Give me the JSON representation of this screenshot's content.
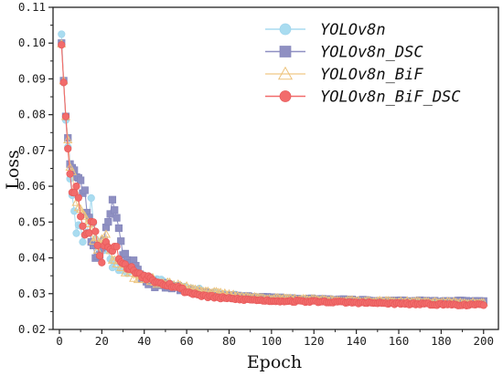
{
  "chart_data": {
    "type": "line",
    "xlabel": "Epoch",
    "ylabel": "Loss",
    "xlim": [
      -3,
      207
    ],
    "ylim": [
      0.02,
      0.11
    ],
    "xticks": [
      0,
      20,
      40,
      60,
      80,
      100,
      120,
      140,
      160,
      180,
      200
    ],
    "yticks": [
      0.02,
      0.03,
      0.04,
      0.05,
      0.06,
      0.07,
      0.08,
      0.09,
      0.1,
      0.11
    ],
    "ytick_labels": [
      "0.02",
      "0.03",
      "0.04",
      "0.05",
      "0.06",
      "0.07",
      "0.08",
      "0.09",
      "0.10",
      "0.11"
    ],
    "legend_position": "top-right",
    "grid": false,
    "series": [
      {
        "name": "YOLOv8n",
        "marker": "circle",
        "color": "#a9dcf0",
        "edge": "#9fd4ec",
        "anchors": [
          [
            1,
            0.1025
          ],
          [
            2,
            0.089
          ],
          [
            3,
            0.0785
          ],
          [
            5,
            0.0635
          ],
          [
            8,
            0.049
          ],
          [
            12,
            0.0455
          ],
          [
            15,
            0.0555
          ],
          [
            18,
            0.041
          ],
          [
            22,
            0.043
          ],
          [
            25,
            0.0385
          ],
          [
            30,
            0.0375
          ],
          [
            35,
            0.036
          ],
          [
            40,
            0.0345
          ],
          [
            45,
            0.0335
          ],
          [
            50,
            0.033
          ],
          [
            55,
            0.0322
          ],
          [
            60,
            0.0315
          ],
          [
            65,
            0.031
          ],
          [
            70,
            0.0305
          ],
          [
            80,
            0.0296
          ],
          [
            90,
            0.029
          ],
          [
            100,
            0.0285
          ],
          [
            120,
            0.0281
          ],
          [
            140,
            0.0279
          ],
          [
            160,
            0.0276
          ],
          [
            180,
            0.0274
          ],
          [
            200,
            0.0273
          ]
        ],
        "noise": 0.0028,
        "seed": 11
      },
      {
        "name": "YOLOv8n_DSC",
        "marker": "square",
        "color": "#8f90c2",
        "edge": "#8587bb",
        "anchors": [
          [
            1,
            0.1
          ],
          [
            2,
            0.0895
          ],
          [
            3,
            0.0795
          ],
          [
            5,
            0.0675
          ],
          [
            8,
            0.0625
          ],
          [
            12,
            0.058
          ],
          [
            15,
            0.0455
          ],
          [
            18,
            0.0395
          ],
          [
            22,
            0.048
          ],
          [
            25,
            0.0565
          ],
          [
            30,
            0.041
          ],
          [
            35,
            0.0385
          ],
          [
            40,
            0.034
          ],
          [
            45,
            0.0325
          ],
          [
            50,
            0.0322
          ],
          [
            55,
            0.0318
          ],
          [
            60,
            0.031
          ],
          [
            65,
            0.0305
          ],
          [
            70,
            0.0298
          ],
          [
            80,
            0.0293
          ],
          [
            90,
            0.029
          ],
          [
            100,
            0.0288
          ],
          [
            120,
            0.0284
          ],
          [
            140,
            0.0281
          ],
          [
            160,
            0.0279
          ],
          [
            180,
            0.0278
          ],
          [
            200,
            0.0278
          ]
        ],
        "noise": 0.0026,
        "seed": 23
      },
      {
        "name": "YOLOv8n_BiF",
        "marker": "triangle",
        "color": "#f4d29a",
        "edge": "#edc37c",
        "anchors": [
          [
            1,
            0.0998
          ],
          [
            2,
            0.0895
          ],
          [
            3,
            0.0795
          ],
          [
            5,
            0.0665
          ],
          [
            8,
            0.0575
          ],
          [
            12,
            0.0515
          ],
          [
            15,
            0.0475
          ],
          [
            18,
            0.0435
          ],
          [
            22,
            0.0455
          ],
          [
            25,
            0.0405
          ],
          [
            30,
            0.037
          ],
          [
            35,
            0.0352
          ],
          [
            40,
            0.0345
          ],
          [
            45,
            0.0335
          ],
          [
            50,
            0.033
          ],
          [
            55,
            0.0322
          ],
          [
            60,
            0.0318
          ],
          [
            65,
            0.0313
          ],
          [
            70,
            0.0306
          ],
          [
            80,
            0.0297
          ],
          [
            90,
            0.029
          ],
          [
            100,
            0.0287
          ],
          [
            120,
            0.0283
          ],
          [
            140,
            0.028
          ],
          [
            160,
            0.0278
          ],
          [
            180,
            0.0276
          ],
          [
            200,
            0.0274
          ]
        ],
        "noise": 0.0024,
        "seed": 37
      },
      {
        "name": "YOLOv8n_BiF_DSC",
        "marker": "circle",
        "color": "#f26b6b",
        "edge": "#e65a5a",
        "anchors": [
          [
            1,
            0.0995
          ],
          [
            2,
            0.089
          ],
          [
            3,
            0.0795
          ],
          [
            4,
            0.0705
          ],
          [
            5,
            0.0645
          ],
          [
            6,
            0.06
          ],
          [
            8,
            0.0595
          ],
          [
            10,
            0.0525
          ],
          [
            12,
            0.0475
          ],
          [
            14,
            0.0465
          ],
          [
            16,
            0.0515
          ],
          [
            18,
            0.044
          ],
          [
            20,
            0.0395
          ],
          [
            22,
            0.0455
          ],
          [
            24,
            0.042
          ],
          [
            26,
            0.0435
          ],
          [
            30,
            0.038
          ],
          [
            35,
            0.0365
          ],
          [
            40,
            0.035
          ],
          [
            45,
            0.0338
          ],
          [
            50,
            0.0328
          ],
          [
            55,
            0.032
          ],
          [
            60,
            0.0305
          ],
          [
            65,
            0.0298
          ],
          [
            70,
            0.0292
          ],
          [
            80,
            0.0286
          ],
          [
            90,
            0.0283
          ],
          [
            100,
            0.028
          ],
          [
            120,
            0.0278
          ],
          [
            140,
            0.0275
          ],
          [
            160,
            0.0272
          ],
          [
            180,
            0.027
          ],
          [
            200,
            0.0268
          ]
        ],
        "noise": 0.0022,
        "seed": 53
      }
    ]
  }
}
